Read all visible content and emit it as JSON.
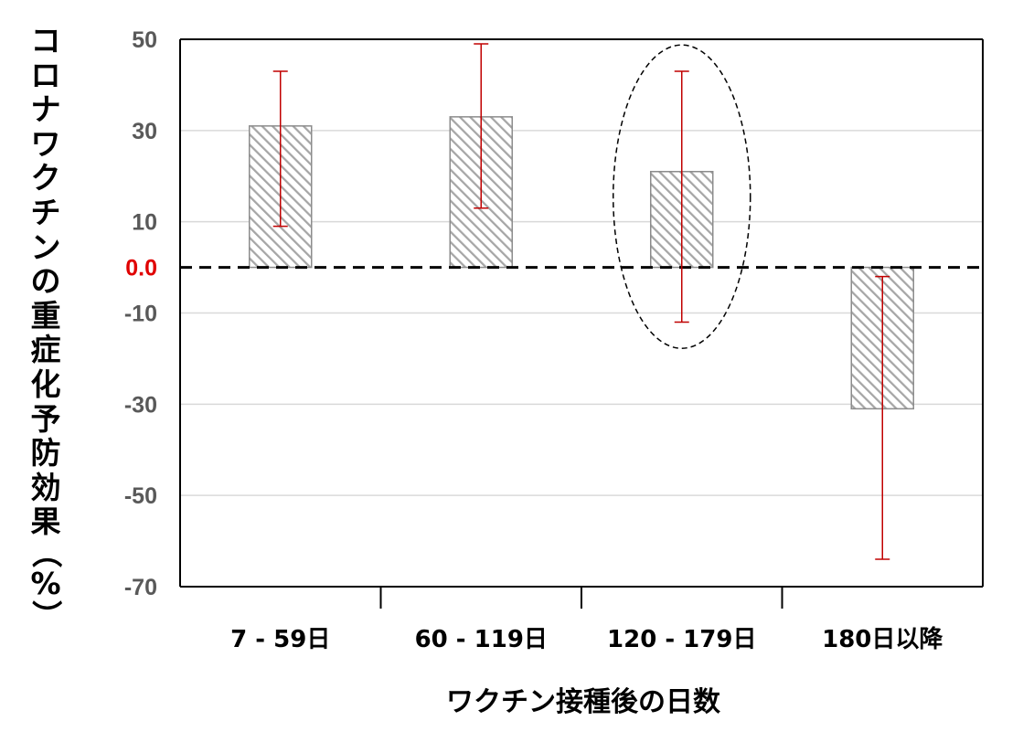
{
  "chart_data": {
    "type": "bar",
    "ylabel": "コロナワクチンの重症化予防効果（%）",
    "xlabel": "ワクチン接種後の日数",
    "categories": [
      "7 - 59日",
      "60 - 119日",
      "120 - 179日",
      "180日以降"
    ],
    "series": [
      {
        "values": [
          31,
          33,
          21,
          -31
        ],
        "ci_lower": [
          9,
          13,
          -12,
          -64
        ],
        "ci_upper": [
          43,
          49,
          43,
          -2
        ]
      }
    ],
    "ylim": [
      -70,
      50
    ],
    "yticks": [
      "50",
      "30",
      "10",
      "0.0",
      "-10",
      "-30",
      "-50",
      "-70"
    ],
    "ytick_values": [
      50,
      30,
      10,
      0,
      -10,
      -30,
      -50,
      -70
    ],
    "reference_line": {
      "y": 0,
      "style": "dashed",
      "label": "0.0",
      "label_color": "#e00000"
    },
    "highlight_category_index": 2,
    "grid": true,
    "colors": {
      "bar_fill_stripe": "#a6a6a6",
      "bar_border": "#8c8c8c",
      "error_bar": "#c00000",
      "tick_text": "#595959",
      "grid": "#d9d9d9"
    }
  }
}
